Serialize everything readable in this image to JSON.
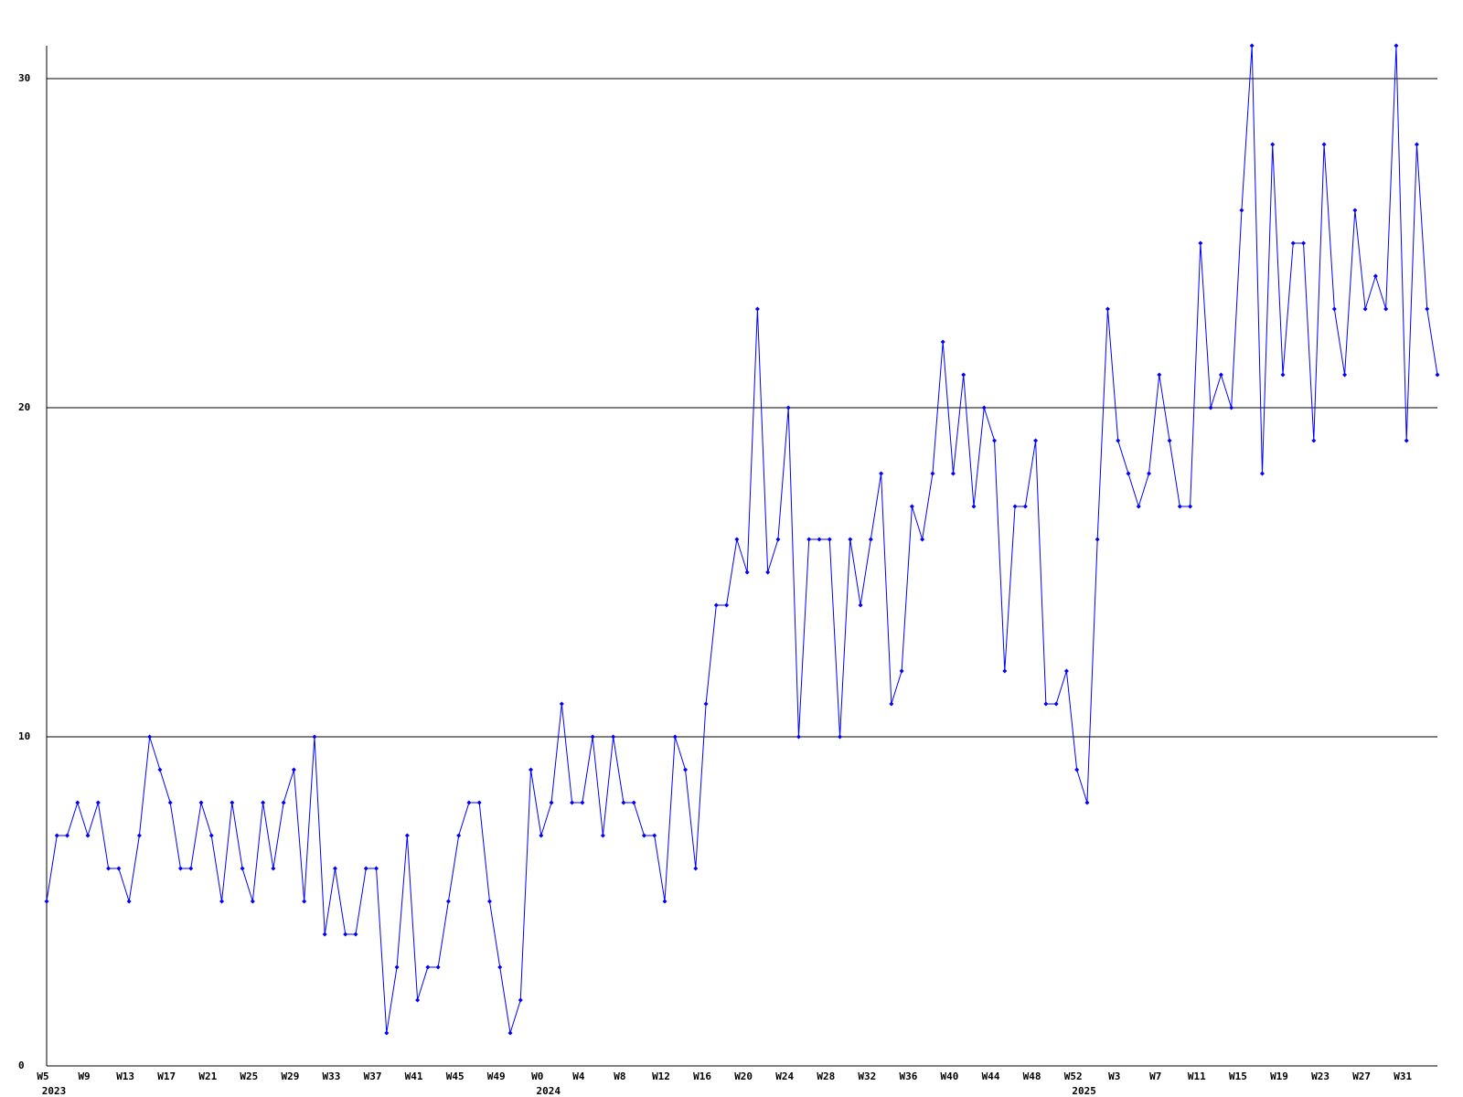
{
  "chart_data": {
    "type": "line",
    "ylim": [
      0,
      31
    ],
    "yticks": [
      0,
      10,
      20,
      30
    ],
    "grid": true,
    "categories": [
      "W5",
      null,
      null,
      null,
      "W9",
      null,
      null,
      null,
      "W13",
      null,
      null,
      null,
      "W17",
      null,
      null,
      null,
      "W21",
      null,
      null,
      null,
      "W25",
      null,
      null,
      null,
      "W29",
      null,
      null,
      null,
      "W33",
      null,
      null,
      null,
      "W37",
      null,
      null,
      null,
      "W41",
      null,
      null,
      null,
      "W45",
      null,
      null,
      null,
      "W49",
      null,
      null,
      null,
      "W0",
      null,
      null,
      null,
      "W4",
      null,
      null,
      null,
      "W8",
      null,
      null,
      null,
      "W12",
      null,
      null,
      null,
      "W16",
      null,
      null,
      null,
      "W20",
      null,
      null,
      null,
      "W24",
      null,
      null,
      null,
      "W28",
      null,
      null,
      null,
      "W32",
      null,
      null,
      null,
      "W36",
      null,
      null,
      null,
      "W40",
      null,
      null,
      null,
      "W44",
      null,
      null,
      null,
      "W48",
      null,
      null,
      null,
      "W52",
      null,
      null,
      null,
      "W3",
      null,
      null,
      null,
      "W7",
      null,
      null,
      null,
      "W11",
      null,
      null,
      null,
      "W15",
      null,
      null,
      null,
      "W19",
      null,
      null,
      null,
      "W23",
      null,
      null,
      null,
      "W27",
      null,
      null,
      null,
      "W31",
      null,
      null,
      null
    ],
    "years": [
      "2023",
      null,
      null,
      null,
      null,
      null,
      null,
      null,
      null,
      null,
      null,
      null,
      null,
      null,
      null,
      null,
      null,
      null,
      null,
      null,
      null,
      null,
      null,
      null,
      null,
      null,
      null,
      null,
      null,
      null,
      null,
      null,
      null,
      null,
      null,
      null,
      null,
      null,
      null,
      null,
      null,
      null,
      null,
      null,
      null,
      null,
      null,
      null,
      "2024",
      null,
      null,
      null,
      null,
      null,
      null,
      null,
      null,
      null,
      null,
      null,
      null,
      null,
      null,
      null,
      null,
      null,
      null,
      null,
      null,
      null,
      null,
      null,
      null,
      null,
      null,
      null,
      null,
      null,
      null,
      null,
      null,
      null,
      null,
      null,
      null,
      null,
      null,
      null,
      null,
      null,
      null,
      null,
      null,
      null,
      null,
      null,
      null,
      null,
      null,
      null,
      "2025",
      null,
      null,
      null,
      null,
      null,
      null,
      null,
      null,
      null,
      null,
      null,
      null,
      null,
      null,
      null,
      null,
      null,
      null,
      null,
      null,
      null,
      null,
      null,
      null,
      null,
      null,
      null,
      null,
      null,
      null,
      null,
      null,
      null,
      null,
      null
    ],
    "series": [
      {
        "color": "#0000ff",
        "values": [
          5,
          7,
          7,
          8,
          7,
          8,
          6,
          6,
          5,
          7,
          10,
          9,
          8,
          6,
          6,
          8,
          7,
          5,
          8,
          6,
          5,
          8,
          6,
          8,
          9,
          5,
          10,
          4,
          6,
          4,
          4,
          6,
          6,
          1,
          3,
          7,
          2,
          3,
          3,
          5,
          7,
          8,
          8,
          5,
          3,
          1,
          2,
          9,
          7,
          8,
          11,
          8,
          8,
          10,
          7,
          10,
          8,
          8,
          7,
          7,
          5,
          10,
          9,
          6,
          11,
          14,
          14,
          16,
          15,
          23,
          15,
          16,
          20,
          10,
          16,
          16,
          16,
          10,
          16,
          14,
          16,
          18,
          11,
          12,
          17,
          16,
          18,
          22,
          18,
          21,
          17,
          20,
          19,
          12,
          17,
          17,
          19,
          11,
          11,
          12,
          9,
          8,
          16,
          23,
          19,
          18,
          17,
          18,
          21,
          19,
          17,
          17,
          25,
          20,
          21,
          20,
          26,
          31,
          18,
          28,
          21,
          25,
          25,
          19,
          28,
          23,
          21,
          26,
          23,
          24,
          23,
          31,
          19,
          28,
          23,
          21
        ]
      }
    ]
  }
}
